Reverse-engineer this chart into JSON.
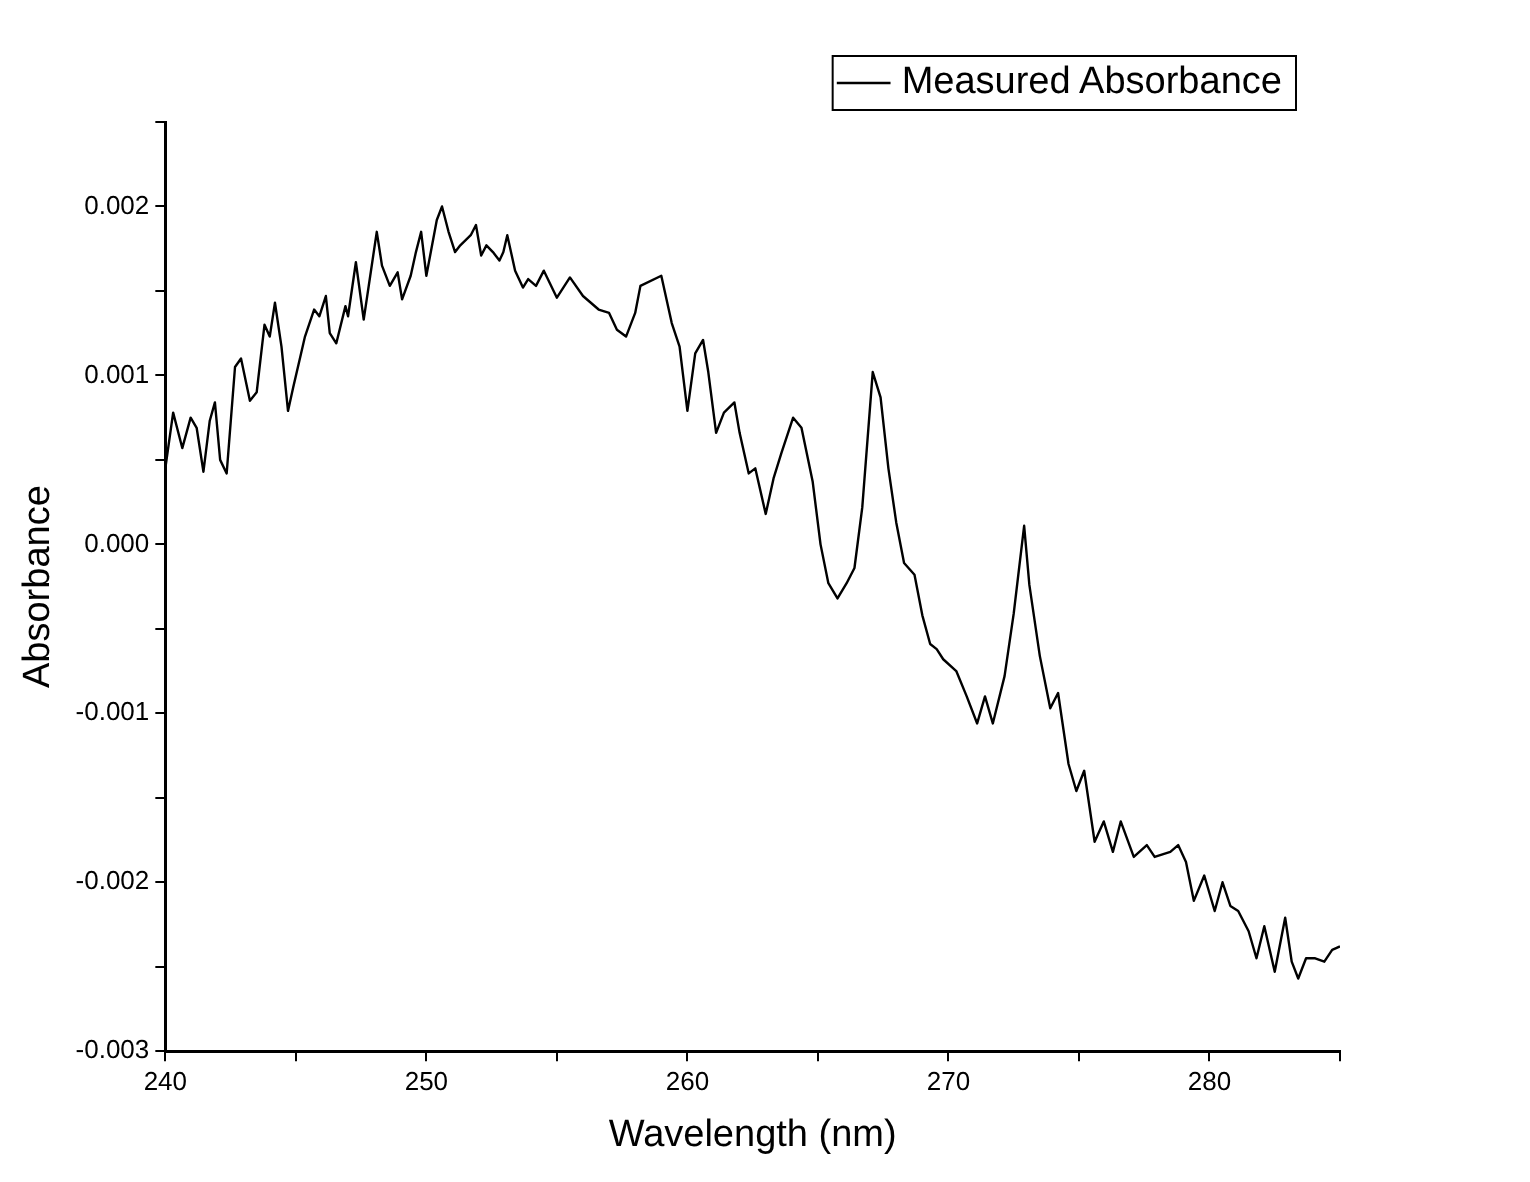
{
  "chart_data": {
    "type": "line",
    "xlabel": "Wavelength (nm)",
    "ylabel": "Absorbance",
    "xlim": [
      240,
      285
    ],
    "xticks": [
      240,
      {
        "value": 245,
        "label": null
      },
      250,
      {
        "value": 255,
        "label": null
      },
      260,
      {
        "value": 265,
        "label": null
      },
      270,
      {
        "value": 275,
        "label": null
      },
      280,
      {
        "value": 285,
        "label": null
      }
    ],
    "ylim": [
      -0.003,
      0.0025
    ],
    "yticks": [
      {
        "value": -0.003,
        "label": "-0.003"
      },
      {
        "value": -0.0025,
        "label": null
      },
      {
        "value": -0.002,
        "label": "-0.002"
      },
      {
        "value": -0.0015,
        "label": null
      },
      {
        "value": -0.001,
        "label": "-0.001"
      },
      {
        "value": -0.0005,
        "label": null
      },
      {
        "value": 0,
        "label": "0.000"
      },
      {
        "value": 0.0005,
        "label": null
      },
      {
        "value": 0.001,
        "label": "0.001"
      },
      {
        "value": 0.0015,
        "label": null
      },
      {
        "value": 0.002,
        "label": "0.002"
      },
      {
        "value": 0.0025,
        "label": null
      }
    ],
    "grid": false,
    "legend": "top right",
    "marker": "none",
    "line_style": "solid",
    "series": [
      {
        "name": "Measured Absorbance",
        "color": "#000000",
        "x": [
          240,
          240.3,
          240.65,
          240.97,
          241.2,
          241.46,
          241.7,
          241.9,
          242.1,
          242.35,
          242.67,
          242.9,
          243.24,
          243.5,
          243.8,
          244,
          244.2,
          244.45,
          244.7,
          244.9,
          245.2,
          245.35,
          245.7,
          245.9,
          246.15,
          246.3,
          246.55,
          246.9,
          247,
          247.3,
          247.6,
          247.85,
          248.1,
          248.3,
          248.6,
          248.9,
          249.07,
          249.4,
          249.6,
          249.8,
          250,
          250.4,
          250.6,
          250.85,
          251.1,
          251.3,
          251.7,
          251.9,
          252.1,
          252.3,
          252.55,
          252.8,
          252.95,
          253.1,
          253.4,
          253.7,
          253.9,
          254.2,
          254.5,
          255,
          255.5,
          256,
          256.3,
          256.6,
          257,
          257.3,
          257.65,
          258,
          258.2,
          259,
          259.4,
          259.7,
          260,
          260.3,
          260.6,
          260.8,
          261.1,
          261.4,
          261.8,
          262,
          262.35,
          262.6,
          263,
          263.3,
          263.6,
          264.05,
          264.37,
          264.8,
          265.1,
          265.4,
          265.75,
          266.1,
          266.4,
          266.7,
          267.1,
          267.4,
          267.7,
          268,
          268.3,
          268.7,
          269,
          269.3,
          269.55,
          269.8,
          270.3,
          270.7,
          271.1,
          271.4,
          271.7,
          272.15,
          272.5,
          272.9,
          273.1,
          273.5,
          273.9,
          274.2,
          274.6,
          274.9,
          275.2,
          275.6,
          275.95,
          276.3,
          276.6,
          277.1,
          277.6,
          277.9,
          278.5,
          278.8,
          279.1,
          279.4,
          279.8,
          280.2,
          280.5,
          280.8,
          281.1,
          281.5,
          281.8,
          282.1,
          282.5,
          282.9,
          283.15,
          283.4,
          283.7,
          284.05,
          284.4,
          284.7,
          285
        ],
        "values": [
          0.00045,
          0.00078,
          0.00057,
          0.00075,
          0.00069,
          0.00043,
          0.00073,
          0.00084,
          0.0005,
          0.00042,
          0.00105,
          0.0011,
          0.00085,
          0.0009,
          0.0013,
          0.00123,
          0.00143,
          0.00117,
          0.00079,
          0.00093,
          0.00113,
          0.00123,
          0.00139,
          0.00135,
          0.00147,
          0.00125,
          0.00119,
          0.00141,
          0.00135,
          0.00167,
          0.00133,
          0.00159,
          0.00185,
          0.00165,
          0.00153,
          0.00161,
          0.00145,
          0.00159,
          0.00173,
          0.00185,
          0.00159,
          0.00192,
          0.002,
          0.00185,
          0.00173,
          0.00177,
          0.00183,
          0.00189,
          0.00171,
          0.00177,
          0.00173,
          0.00168,
          0.00173,
          0.00183,
          0.00162,
          0.00152,
          0.00157,
          0.00153,
          0.00162,
          0.00146,
          0.00158,
          0.00147,
          0.00143,
          0.00139,
          0.00137,
          0.00127,
          0.00123,
          0.00137,
          0.00153,
          0.00159,
          0.00131,
          0.00117,
          0.00079,
          0.00113,
          0.00121,
          0.00102,
          0.00066,
          0.00078,
          0.00084,
          0.00066,
          0.00042,
          0.00045,
          0.00018,
          0.00039,
          0.00054,
          0.00075,
          0.00069,
          0.00037,
          0,
          -0.00023,
          -0.00032,
          -0.00023,
          -0.00014,
          0.00022,
          0.00102,
          0.00087,
          0.00045,
          0.00013,
          -0.00011,
          -0.00018,
          -0.00042,
          -0.00059,
          -0.00062,
          -0.00068,
          -0.00075,
          -0.0009,
          -0.00106,
          -0.0009,
          -0.00106,
          -0.00078,
          -0.00041,
          0.00011,
          -0.00024,
          -0.00066,
          -0.00097,
          -0.00088,
          -0.0013,
          -0.00146,
          -0.00134,
          -0.00176,
          -0.00164,
          -0.00182,
          -0.00164,
          -0.00185,
          -0.00178,
          -0.00185,
          -0.00182,
          -0.00178,
          -0.00188,
          -0.00211,
          -0.00196,
          -0.00217,
          -0.002,
          -0.00214,
          -0.00217,
          -0.00229,
          -0.00245,
          -0.00226,
          -0.00253,
          -0.00221,
          -0.00247,
          -0.00257,
          -0.00245,
          -0.00245,
          -0.00247,
          -0.0024,
          -0.00238
        ]
      }
    ]
  }
}
